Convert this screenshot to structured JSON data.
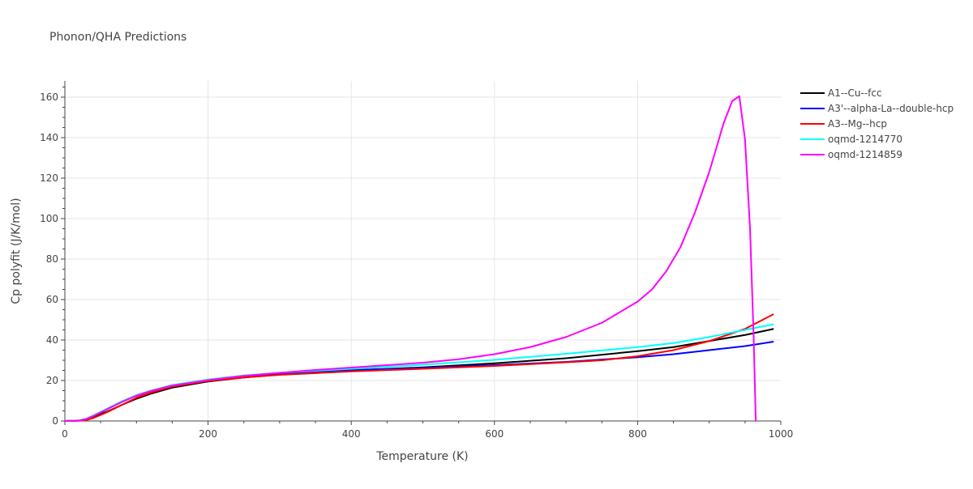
{
  "chart_data": {
    "type": "line",
    "title": "Phonon/QHA Predictions",
    "xlabel": "Temperature (K)",
    "ylabel": "Cp polyfit (J/K/mol)",
    "xlim": [
      0,
      1000
    ],
    "ylim": [
      0,
      168
    ],
    "x_ticks": [
      "0",
      "200",
      "400",
      "600",
      "800",
      "1000"
    ],
    "y_ticks": [
      "0",
      "20",
      "40",
      "60",
      "80",
      "100",
      "120",
      "140",
      "160"
    ],
    "grid": true,
    "legend_position": "right",
    "series": [
      {
        "name": "A1--Cu--fcc",
        "color": "#000000",
        "x": [
          0,
          20,
          30,
          40,
          60,
          80,
          100,
          120,
          150,
          200,
          250,
          300,
          400,
          500,
          600,
          700,
          800,
          850,
          900,
          950,
          990
        ],
        "y": [
          0,
          0.2,
          0.8,
          2,
          4.8,
          8,
          11,
          13.5,
          16.5,
          19.5,
          21.5,
          23,
          25,
          26.5,
          28.5,
          31,
          34.5,
          36.5,
          39.5,
          42.5,
          45.5
        ]
      },
      {
        "name": "A3'--alpha-La--double-hcp",
        "color": "#0000ff",
        "x": [
          0,
          20,
          30,
          40,
          60,
          80,
          100,
          120,
          150,
          200,
          250,
          300,
          400,
          500,
          600,
          700,
          800,
          850,
          900,
          950,
          990
        ],
        "y": [
          0,
          0.3,
          1,
          2.5,
          6,
          9.5,
          12.5,
          14.8,
          17.5,
          20.2,
          22.2,
          23.5,
          25.2,
          26.2,
          27.6,
          29.2,
          31.5,
          33,
          35,
          37,
          39.2
        ]
      },
      {
        "name": "A3--Mg--hcp",
        "color": "#ff0000",
        "x": [
          0,
          20,
          30,
          40,
          60,
          80,
          100,
          120,
          150,
          200,
          250,
          300,
          400,
          500,
          600,
          700,
          750,
          800,
          850,
          900,
          950,
          990
        ],
        "y": [
          0,
          0.1,
          0.5,
          1.5,
          4.5,
          8,
          11.5,
          14,
          17,
          19.8,
          21.5,
          22.8,
          24.5,
          25.8,
          27.2,
          29,
          30,
          32,
          35,
          39.5,
          45.5,
          52.8
        ]
      },
      {
        "name": "oqmd-1214770",
        "color": "#00ffff",
        "x": [
          0,
          20,
          30,
          40,
          60,
          80,
          100,
          120,
          150,
          200,
          250,
          300,
          400,
          500,
          600,
          700,
          800,
          850,
          900,
          950,
          990
        ],
        "y": [
          0,
          0.3,
          1.2,
          2.8,
          6.3,
          9.8,
          12.8,
          15,
          17.8,
          20.5,
          22.5,
          23.8,
          25.8,
          27.8,
          30.2,
          33.2,
          36.5,
          38.5,
          41.5,
          45,
          47.8
        ]
      },
      {
        "name": "oqmd-1214859",
        "color": "#ff00ff",
        "x": [
          0,
          20,
          30,
          40,
          60,
          80,
          100,
          120,
          150,
          200,
          250,
          300,
          350,
          400,
          450,
          500,
          550,
          600,
          650,
          700,
          750,
          800,
          820,
          840,
          860,
          880,
          900,
          920,
          932,
          942,
          950,
          957,
          962,
          965
        ],
        "y": [
          0,
          0.2,
          1,
          2.5,
          6,
          9.5,
          12.5,
          14.8,
          17.5,
          20.2,
          22.3,
          23.8,
          25.2,
          26.4,
          27.6,
          28.8,
          30.5,
          33,
          36.5,
          41.5,
          48.5,
          59,
          65,
          74,
          86,
          103,
          123,
          147,
          158,
          160.5,
          139,
          95,
          42,
          0
        ]
      }
    ]
  }
}
